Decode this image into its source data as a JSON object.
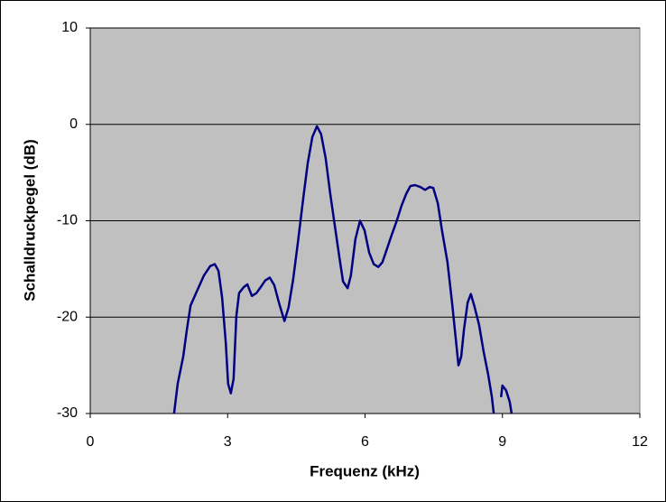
{
  "chart_data": {
    "type": "line",
    "x_label": "Frequenz (kHz)",
    "y_label": "Schalldruckpegel (dB)",
    "xlim": [
      0,
      12
    ],
    "xticks": [
      0,
      3,
      6,
      9,
      12
    ],
    "ylim": [
      -30,
      10
    ],
    "yticks": [
      10,
      0,
      -10,
      -20,
      -30
    ],
    "grid": true,
    "plot_background": "#c0c0c0",
    "series": [
      {
        "color": "#000080",
        "x": [
          1.83,
          1.91,
          2.03,
          2.11,
          2.19,
          2.33,
          2.48,
          2.62,
          2.72,
          2.8,
          2.88,
          2.96,
          3.01,
          3.07,
          3.13,
          3.19,
          3.25,
          3.35,
          3.43,
          3.53,
          3.63,
          3.72,
          3.82,
          3.92,
          4.02,
          4.12,
          4.24,
          4.33,
          4.43,
          4.53,
          4.65,
          4.75,
          4.85,
          4.95,
          5.04,
          5.14,
          5.24,
          5.34,
          5.44,
          5.52,
          5.62,
          5.69,
          5.79,
          5.89,
          5.99,
          6.09,
          6.19,
          6.29,
          6.38,
          6.48,
          6.58,
          6.7,
          6.8,
          6.9,
          6.99,
          7.09,
          7.21,
          7.31,
          7.41,
          7.49,
          7.59,
          7.68,
          7.8,
          7.9,
          7.98,
          8.04,
          8.1,
          8.16,
          8.24,
          8.31,
          8.39,
          8.49,
          8.59,
          8.69,
          8.77,
          8.81,
          8.89,
          8.97,
          9.0,
          9.08,
          9.16,
          9.2
        ],
        "values": [
          -30,
          -26.9,
          -24.1,
          -21.3,
          -18.8,
          -17.3,
          -15.7,
          -14.7,
          -14.5,
          -15.2,
          -18.0,
          -22.7,
          -26.9,
          -27.9,
          -26.4,
          -19.9,
          -17.5,
          -16.9,
          -16.6,
          -17.8,
          -17.5,
          -16.9,
          -16.2,
          -15.9,
          -16.7,
          -18.5,
          -20.4,
          -19.0,
          -16.1,
          -12.4,
          -7.7,
          -4.0,
          -1.3,
          -0.2,
          -1.0,
          -3.5,
          -7.2,
          -10.5,
          -13.8,
          -16.3,
          -17.0,
          -15.7,
          -11.9,
          -10.0,
          -11.0,
          -13.3,
          -14.5,
          -14.8,
          -14.3,
          -12.9,
          -11.5,
          -9.9,
          -8.4,
          -7.2,
          -6.4,
          -6.3,
          -6.5,
          -6.8,
          -6.5,
          -6.6,
          -8.2,
          -11.0,
          -14.3,
          -18.5,
          -22.2,
          -25.0,
          -24.1,
          -21.3,
          -18.5,
          -17.6,
          -18.9,
          -20.8,
          -23.6,
          -26.0,
          -28.3,
          -30,
          null,
          -28.3,
          -27.1,
          -27.6,
          -28.8,
          -30
        ]
      }
    ]
  }
}
